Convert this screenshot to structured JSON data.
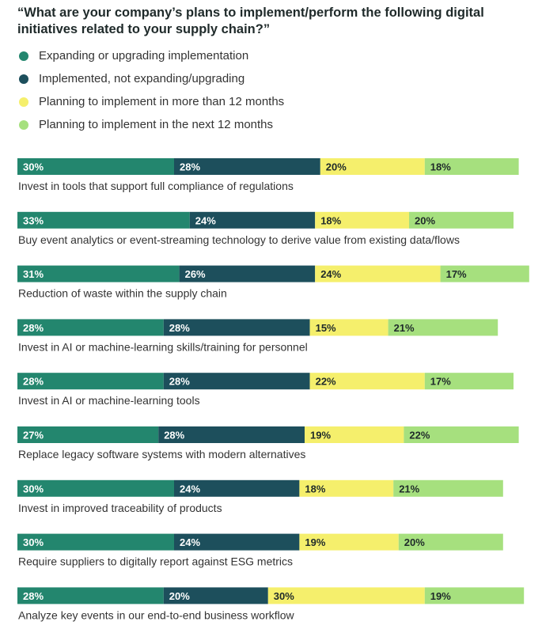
{
  "colors": {
    "expanding": "#23866e",
    "implemented": "#1d4f5c",
    "planning_over_12": "#f5ef6c",
    "planning_next_12": "#a6e07e"
  },
  "chart_data": {
    "type": "bar",
    "orientation": "horizontal",
    "stacked": true,
    "title": "“What are your company’s plans to implement/perform the following digital initiatives related to your supply chain?”",
    "legend_position": "top-left",
    "grid": false,
    "value_format": "percent",
    "categories": [
      "Invest in tools that support full compliance of regulations",
      "Buy event analytics or event-streaming technology to derive value from existing data/flows",
      "Reduction of waste within the supply chain",
      "Invest in AI or machine-learning skills/training for personnel",
      "Invest in AI or machine-learning tools",
      "Replace legacy software systems with modern alternatives",
      "Invest in improved traceability of products",
      "Require suppliers to digitally report against ESG metrics",
      "Analyze key events in our end-to-end business workflow"
    ],
    "series": [
      {
        "name": "Expanding or upgrading implementation",
        "color_key": "expanding",
        "values": [
          30,
          33,
          31,
          28,
          28,
          27,
          30,
          30,
          28
        ]
      },
      {
        "name": "Implemented, not expanding/upgrading",
        "color_key": "implemented",
        "values": [
          28,
          24,
          26,
          28,
          28,
          28,
          24,
          24,
          20
        ]
      },
      {
        "name": "Planning to implement in more than 12 months",
        "color_key": "planning_over_12",
        "values": [
          20,
          18,
          24,
          15,
          22,
          19,
          18,
          19,
          30
        ]
      },
      {
        "name": "Planning to implement in the next 12 months",
        "color_key": "planning_next_12",
        "values": [
          18,
          20,
          17,
          21,
          17,
          22,
          21,
          20,
          19
        ]
      }
    ]
  }
}
